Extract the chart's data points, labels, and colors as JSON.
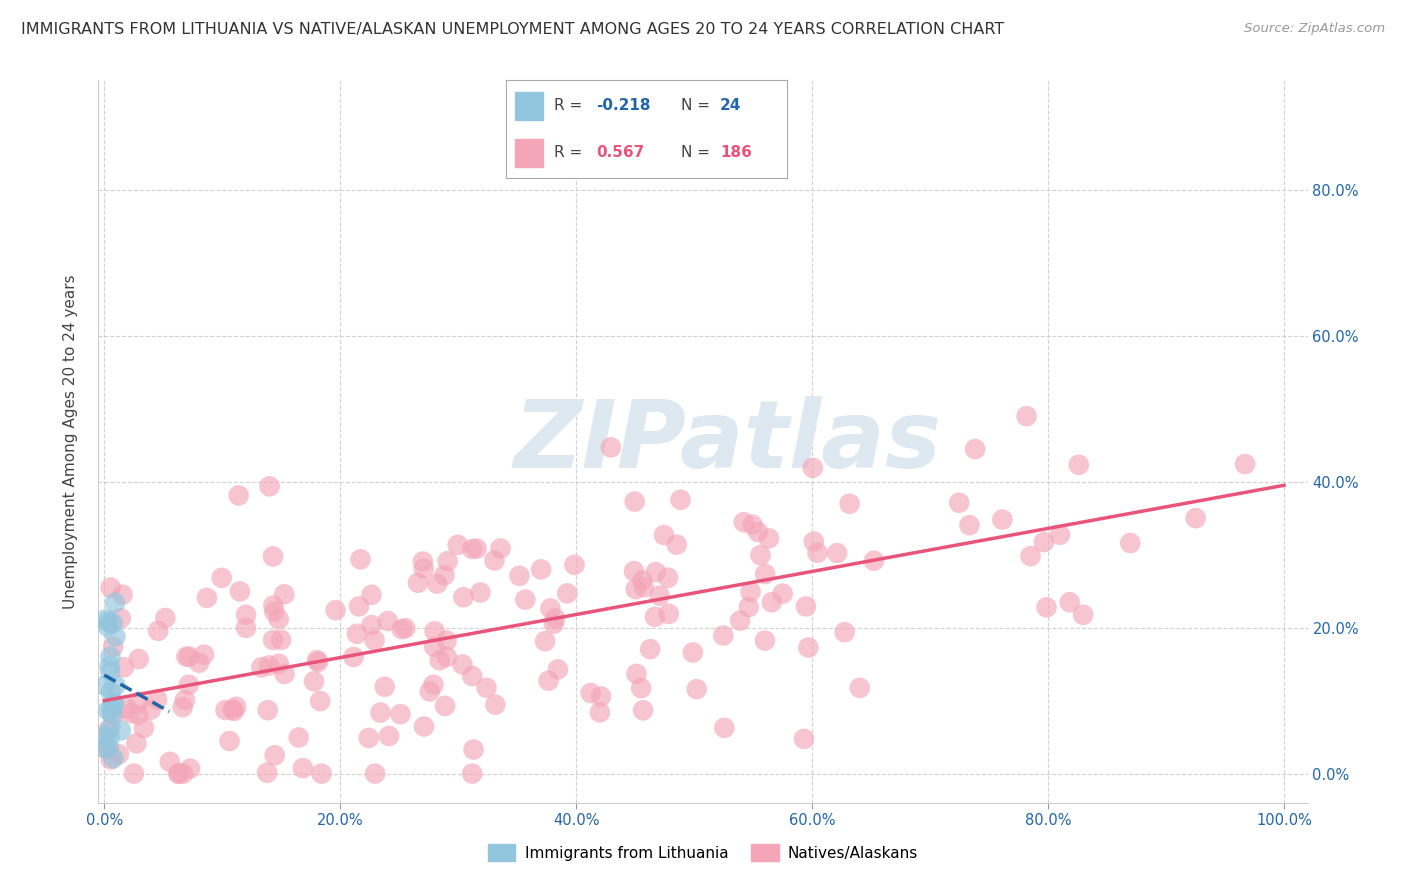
{
  "title": "IMMIGRANTS FROM LITHUANIA VS NATIVE/ALASKAN UNEMPLOYMENT AMONG AGES 20 TO 24 YEARS CORRELATION CHART",
  "source": "Source: ZipAtlas.com",
  "ylabel": "Unemployment Among Ages 20 to 24 years",
  "legend_blue_label": "Immigrants from Lithuania",
  "legend_pink_label": "Natives/Alaskans",
  "R_blue": -0.218,
  "N_blue": 24,
  "R_pink": 0.567,
  "N_pink": 186,
  "blue_color": "#92c5de",
  "pink_color": "#f4a6b8",
  "blue_line_color": "#2166ac",
  "pink_line_color": "#e8547a",
  "watermark_color": "#dde8f0",
  "background_color": "#ffffff",
  "title_fontsize": 11.5,
  "axis_label_fontsize": 11,
  "tick_fontsize": 10.5,
  "legend_fontsize": 11,
  "xlim": [
    -0.005,
    1.02
  ],
  "ylim": [
    -0.04,
    0.95
  ],
  "xticks": [
    0.0,
    0.2,
    0.4,
    0.6,
    0.8,
    1.0
  ],
  "yticks": [
    0.0,
    0.2,
    0.4,
    0.6,
    0.8
  ],
  "right_ytick_labels": [
    "0.0%",
    "20.0%",
    "40.0%",
    "60.0%",
    "80.0%"
  ],
  "right_ytick_pos": [
    0.0,
    0.2,
    0.4,
    0.6,
    0.8
  ],
  "pink_line_x0": 0.0,
  "pink_line_y0": 0.1,
  "pink_line_x1": 1.0,
  "pink_line_y1": 0.395,
  "blue_line_x0": 0.0,
  "blue_line_y0": 0.135,
  "blue_line_x1": 0.055,
  "blue_line_y1": 0.085
}
